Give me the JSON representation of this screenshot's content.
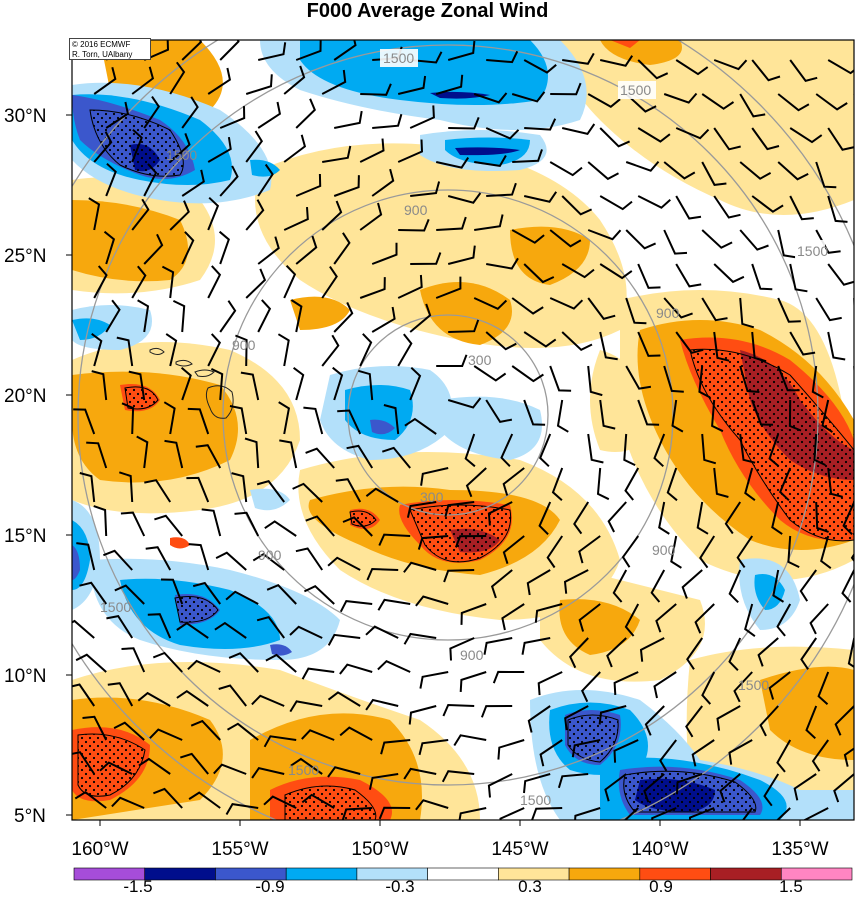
{
  "title": "F000 Average Zonal Wind",
  "credit": {
    "line1": "© 2016 ECMWF",
    "line2": "R. Torn, UAlbany"
  },
  "lat_labels": [
    "30°N",
    "25°N",
    "20°N",
    "15°N",
    "10°N",
    "5°N"
  ],
  "lon_labels": [
    "160°W",
    "155°W",
    "150°W",
    "145°W",
    "140°W",
    "135°W"
  ],
  "colorbar": {
    "labels": [
      "-1.5",
      "-0.9",
      "-0.3",
      "0.3",
      "0.9",
      "1.5"
    ],
    "colors": [
      "#a64dd9",
      "#000e8c",
      "#3b57cc",
      "#00aaf2",
      "#b3e0fa",
      "#ffffff",
      "#ffe599",
      "#f7a80d",
      "#ff4d12",
      "#a81f24",
      "#ff85c2"
    ]
  },
  "range_rings": {
    "labels": [
      "300",
      "900",
      "1500"
    ],
    "center": "18.5°N, 146.5°W",
    "units_note": ""
  },
  "chart_data": {
    "type": "map",
    "field": "Average Zonal Wind",
    "forecast_hour": "F000",
    "lat_range": [
      5,
      32.5
    ],
    "lon_range": [
      -161,
      -133
    ],
    "contour_levels": [
      -1.5,
      -1.2,
      -0.9,
      -0.6,
      -0.3,
      0.3,
      0.6,
      0.9,
      1.2,
      1.5
    ],
    "range_ring_values": [
      300,
      900,
      1500
    ],
    "stippling": "shown over strongest anomalies",
    "wind_barbs": "shown across domain"
  }
}
